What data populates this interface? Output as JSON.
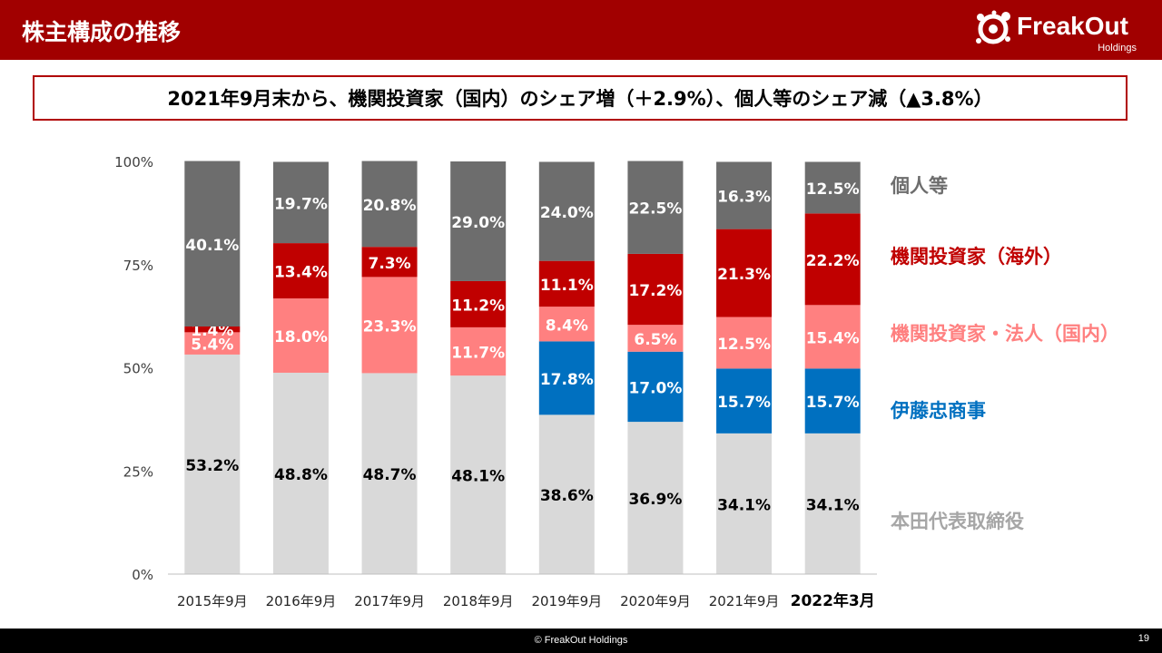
{
  "header": {
    "title": "株主構成の推移",
    "logo_text": "FreakOut",
    "logo_subtext": "Holdings"
  },
  "headline": "2021年9月末から、機関投資家（国内）のシェア増（＋2.9%）、個人等のシェア減（▲3.8%）",
  "colors": {
    "header_bg": "#a10000",
    "headline_border": "#b00000",
    "individual": "#6d6d6d",
    "foreign_institutional": "#c00000",
    "domestic_institutional": "#ff8080",
    "itochu": "#0070c0",
    "honda": "#d9d9d9"
  },
  "chart_data": {
    "type": "bar",
    "stacked": true,
    "categories": [
      "2015年9月",
      "2016年9月",
      "2017年9月",
      "2018年9月",
      "2019年9月",
      "2020年9月",
      "2021年9月",
      "2022年3月"
    ],
    "highlight_category": "2022年3月",
    "ylim": [
      0,
      100
    ],
    "yticks": [
      "0%",
      "25%",
      "50%",
      "75%",
      "100%"
    ],
    "series": [
      {
        "name": "本田代表取締役",
        "color": "#d9d9d9",
        "label_color": "#000000",
        "values": [
          53.2,
          48.8,
          48.7,
          48.1,
          38.6,
          36.9,
          34.1,
          34.1
        ]
      },
      {
        "name": "伊藤忠商事",
        "color": "#0070c0",
        "label_color": "#ffffff",
        "values": [
          0,
          0,
          0,
          0,
          17.8,
          17.0,
          15.7,
          15.7
        ]
      },
      {
        "name": "機関投資家・法人（国内）",
        "color": "#ff8080",
        "label_color": "#ffffff",
        "values": [
          5.4,
          18.0,
          23.3,
          11.7,
          8.4,
          6.5,
          12.5,
          15.4
        ]
      },
      {
        "name": "機関投資家（海外）",
        "color": "#c00000",
        "label_color": "#ffffff",
        "values": [
          1.4,
          13.4,
          7.3,
          11.2,
          11.1,
          17.2,
          21.3,
          22.2
        ]
      },
      {
        "name": "個人等",
        "color": "#6d6d6d",
        "label_color": "#ffffff",
        "values": [
          40.1,
          19.7,
          20.8,
          29.0,
          24.0,
          22.5,
          16.3,
          12.5
        ]
      }
    ],
    "legend": [
      {
        "name": "個人等",
        "color": "#6d6d6d"
      },
      {
        "name": "機関投資家（海外）",
        "color": "#c00000"
      },
      {
        "name": "機関投資家・法人（国内）",
        "color": "#ff8080"
      },
      {
        "name": "伊藤忠商事",
        "color": "#0070c0"
      },
      {
        "name": "本田代表取締役",
        "color": "#a6a6a6"
      }
    ],
    "legend_placement": "right",
    "grid": false
  },
  "footer": {
    "copyright": "© FreakOut Holdings",
    "page": "19"
  }
}
